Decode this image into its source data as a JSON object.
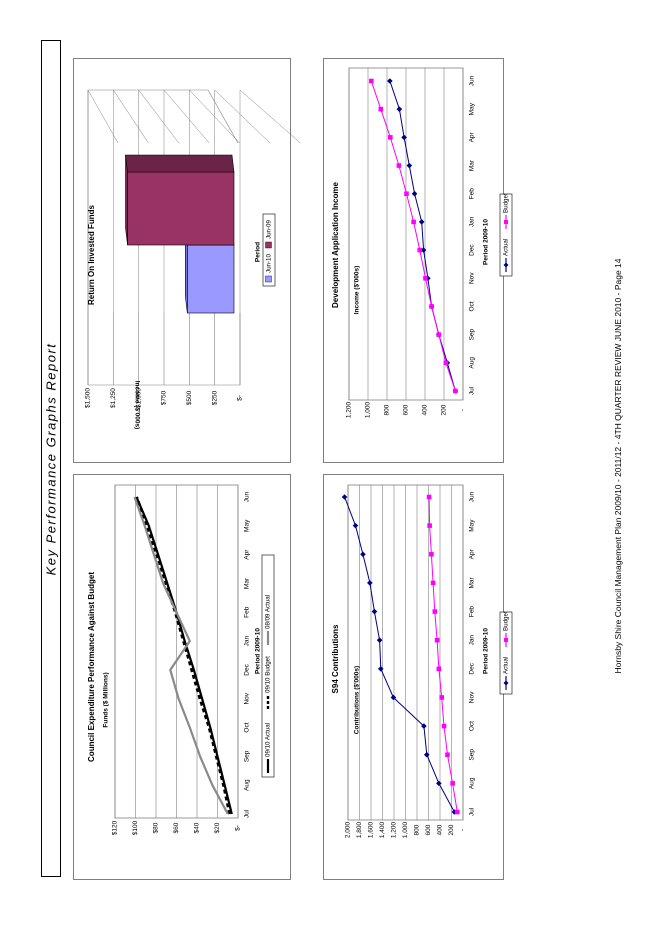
{
  "page": {
    "title": "Key Performance Graphs Report",
    "footer": "Hornsby Shire Council Management Plan 2009/10 - 2011/12 - 4TH QUARTER REVIEW JUNE 2010 - Page 14"
  },
  "chart_data": [
    {
      "id": "expenditure",
      "type": "line",
      "title": "Council Expenditure Performance Against Budget",
      "xlabel": "Period  2009-10",
      "ylabel": "Funds ($ Millions)",
      "categories": [
        "Jul",
        "Aug",
        "Sep",
        "Oct",
        "Nov",
        "Dec",
        "Jan",
        "Feb",
        "Mar",
        "Apr",
        "May",
        "Jun"
      ],
      "ylim": [
        0,
        120
      ],
      "yticks": [
        "$-",
        "$20",
        "$40",
        "$60",
        "$80",
        "$100",
        "$120"
      ],
      "grid": true,
      "legend": "bottom",
      "series": [
        {
          "name": "09/10 Actual",
          "color": "#000000",
          "style": "solid",
          "width": 2.2,
          "values": [
            6,
            13,
            20,
            27,
            35,
            43,
            52,
            60,
            69,
            78,
            87,
            99
          ]
        },
        {
          "name": "09/10 Budget",
          "color": "#000000",
          "style": "dashed",
          "width": 3.2,
          "values": [
            8,
            14,
            21,
            28,
            37,
            45,
            53,
            61,
            70,
            79,
            89,
            99
          ]
        },
        {
          "name": "08/09 Actual",
          "color": "#8a8a8a",
          "style": "solid",
          "width": 2.2,
          "values": [
            10,
            25,
            37,
            47,
            58,
            66,
            47,
            60,
            73,
            82,
            91,
            101
          ]
        }
      ]
    },
    {
      "id": "roif",
      "type": "bar",
      "title": "Return On Invested Funds",
      "xlabel": "Period",
      "ylabel": "Income ($'000s)",
      "ylim": [
        0,
        1500
      ],
      "yticks": [
        "$-",
        "$250",
        "$500",
        "$750",
        "$1,000",
        "$1,250",
        "$1,500"
      ],
      "grid": true,
      "legend": "bottom",
      "series": [
        {
          "name": "Jun-10",
          "color": "#9999ff",
          "values": [
            520
          ]
        },
        {
          "name": "Jun-09",
          "color": "#993366",
          "values": [
            1110
          ]
        }
      ]
    },
    {
      "id": "s94",
      "type": "line",
      "title": "S94 Contributions",
      "xlabel": "Period 2009-10",
      "ylabel": "Contributions ($'000s)",
      "categories": [
        "Jul",
        "Aug",
        "Sep",
        "Oct",
        "Nov",
        "Dec",
        "Jan",
        "Feb",
        "Mar",
        "Apr",
        "May",
        "Jun"
      ],
      "ylim": [
        0,
        2000
      ],
      "yticks": [
        "-",
        "200",
        "400",
        "600",
        "800",
        "1,000",
        "1,200",
        "1,400",
        "1,600",
        "1,800",
        "2,000"
      ],
      "grid": true,
      "legend": "bottom",
      "series": [
        {
          "name": "Actual",
          "color": "#000080",
          "marker": "diamond",
          "values": [
            150,
            420,
            630,
            680,
            1210,
            1430,
            1450,
            1540,
            1620,
            1740,
            1870,
            2060
          ]
        },
        {
          "name": "Budget",
          "color": "#ff00ff",
          "marker": "square",
          "values": [
            100,
            180,
            270,
            330,
            370,
            420,
            450,
            490,
            520,
            550,
            580,
            590
          ]
        }
      ]
    },
    {
      "id": "dai",
      "type": "line",
      "title": "Development Application Income",
      "xlabel": "Period 2009-10",
      "ylabel": "Income ($'000s)",
      "categories": [
        "Jul",
        "Aug",
        "Sep",
        "Oct",
        "Nov",
        "Dec",
        "Jan",
        "Feb",
        "Mar",
        "Apr",
        "May",
        "Jun"
      ],
      "ylim": [
        0,
        1200
      ],
      "yticks": [
        "-",
        "200",
        "400",
        "600",
        "800",
        "1,000",
        "1,200"
      ],
      "grid": true,
      "legend": "bottom",
      "series": [
        {
          "name": "Actual",
          "color": "#000080",
          "marker": "diamond",
          "values": [
            80,
            165,
            255,
            330,
            370,
            415,
            435,
            510,
            565,
            620,
            670,
            770
          ]
        },
        {
          "name": "Budget",
          "color": "#ff00ff",
          "marker": "square",
          "values": [
            80,
            180,
            255,
            330,
            395,
            455,
            520,
            595,
            675,
            765,
            865,
            965
          ]
        }
      ]
    }
  ]
}
